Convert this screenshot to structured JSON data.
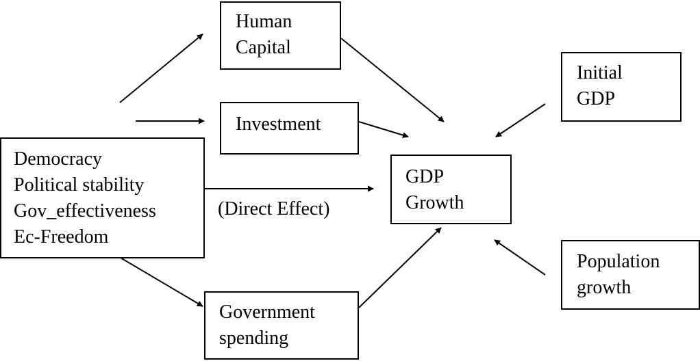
{
  "boxes": {
    "human_capital": [
      "Human",
      "Capital"
    ],
    "investment": [
      "Investment"
    ],
    "institutions": [
      "Democracy",
      "Political stability",
      "Gov_effectiveness",
      "Ec-Freedom"
    ],
    "gdp_growth": [
      "GDP",
      "Growth"
    ],
    "initial_gdp": [
      "Initial",
      "GDP"
    ],
    "population_growth": [
      "Population",
      "growth"
    ],
    "government_spending": [
      "Government",
      "spending"
    ]
  },
  "direct_effect_label": "(Direct Effect)",
  "colors": {
    "stroke": "#000000",
    "background": "#ffffff"
  }
}
